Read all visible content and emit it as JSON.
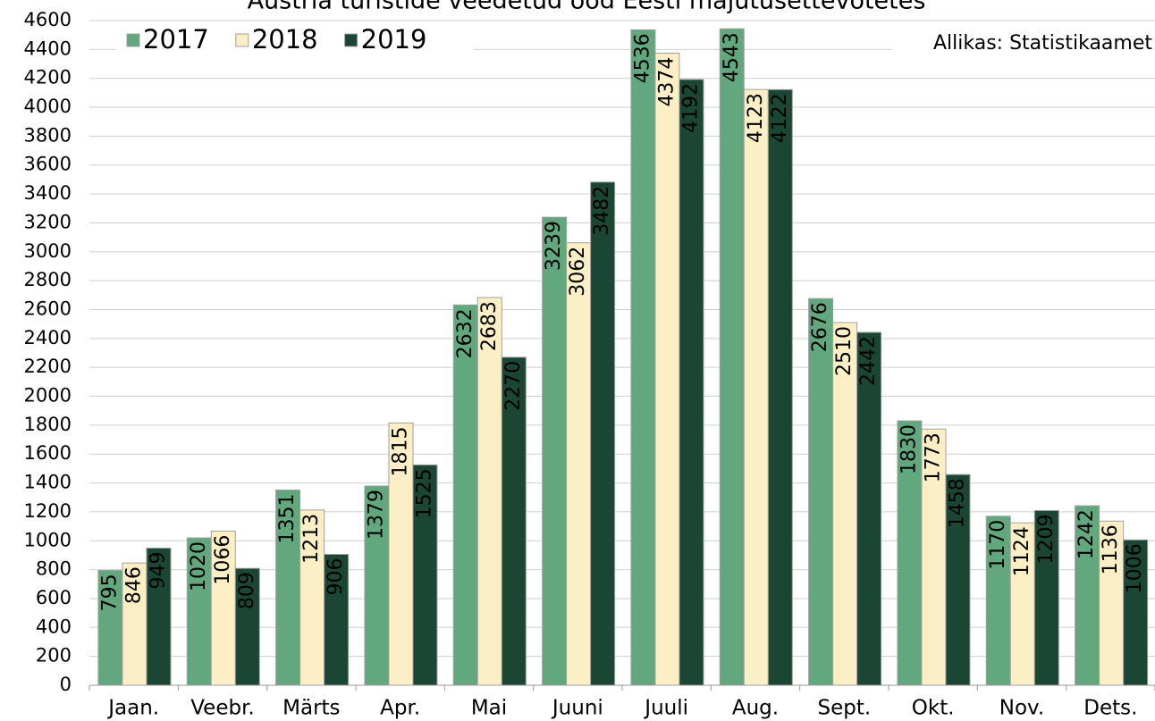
{
  "chart_data": {
    "type": "bar",
    "title": "Austria turistide veedetud ööd Eesti majutusettevõtetes",
    "source": "Allikas: Statistikaamet",
    "categories": [
      "Jaan.",
      "Veebr.",
      "Märts",
      "Apr.",
      "Mai",
      "Juuni",
      "Juuli",
      "Aug.",
      "Sept.",
      "Okt.",
      "Nov.",
      "Dets."
    ],
    "series": [
      {
        "name": "2017",
        "color": "#62a77d",
        "label_color": "#ffffff",
        "values": [
          795,
          1020,
          1351,
          1379,
          2632,
          3239,
          4536,
          4543,
          2676,
          1830,
          1170,
          1242
        ]
      },
      {
        "name": "2018",
        "color": "#fdefc5",
        "label_color": "#000000",
        "values": [
          846,
          1066,
          1213,
          1815,
          2683,
          3062,
          4374,
          4123,
          2510,
          1773,
          1124,
          1136
        ]
      },
      {
        "name": "2019",
        "color": "#1c4634",
        "label_color": "#ffffff",
        "values": [
          949,
          809,
          906,
          1525,
          2270,
          3482,
          4192,
          4122,
          2442,
          1458,
          1209,
          1006
        ]
      }
    ],
    "ylim": [
      0,
      4600
    ],
    "yticks": [
      0,
      200,
      400,
      600,
      800,
      1000,
      1200,
      1400,
      1600,
      1800,
      2000,
      2200,
      2400,
      2600,
      2800,
      3000,
      3200,
      3400,
      3600,
      3800,
      4000,
      4200,
      4400,
      4600
    ],
    "grid": true,
    "legend": "top-left"
  }
}
